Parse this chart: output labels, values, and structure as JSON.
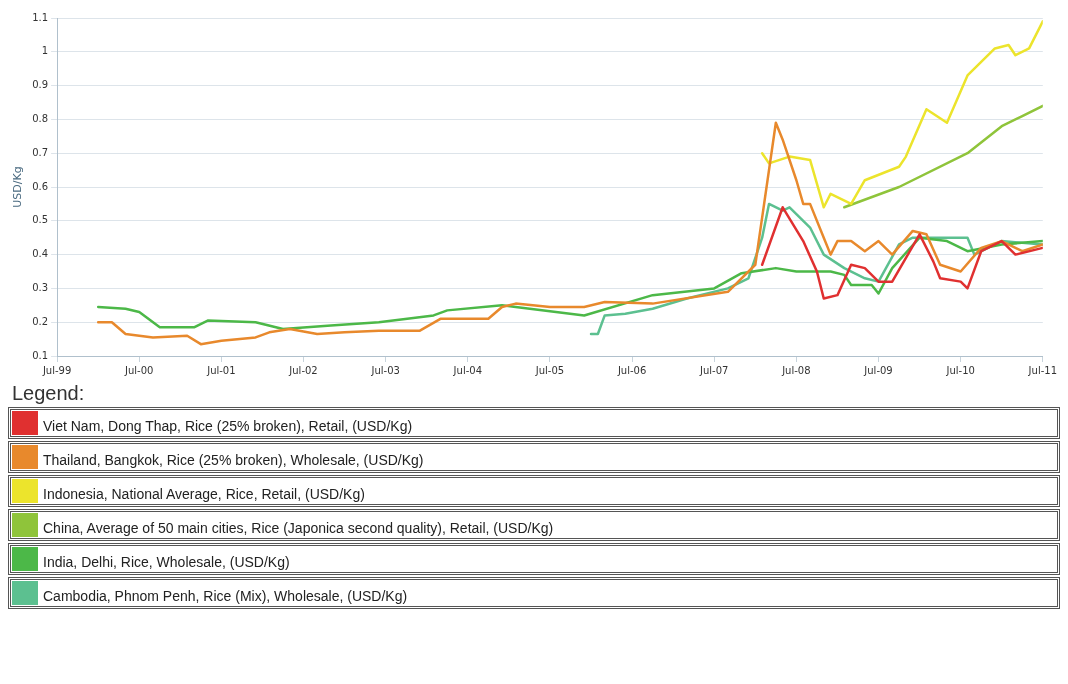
{
  "chart_data": {
    "type": "line",
    "ylabel": "USD/Kg",
    "legend_title": "Legend:",
    "legend": "bottom",
    "grid": "y",
    "marker": "none",
    "line_style": "solid",
    "xlim": [
      "1999-07",
      "2011-07"
    ],
    "xticks": [
      {
        "value": "1999-07",
        "label": "Jul-99"
      },
      {
        "value": "2000-07",
        "label": "Jul-00"
      },
      {
        "value": "2001-07",
        "label": "Jul-01"
      },
      {
        "value": "2002-07",
        "label": "Jul-02"
      },
      {
        "value": "2003-07",
        "label": "Jul-03"
      },
      {
        "value": "2004-07",
        "label": "Jul-04"
      },
      {
        "value": "2005-07",
        "label": "Jul-05"
      },
      {
        "value": "2006-07",
        "label": "Jul-06"
      },
      {
        "value": "2007-07",
        "label": "Jul-07"
      },
      {
        "value": "2008-07",
        "label": "Jul-08"
      },
      {
        "value": "2009-07",
        "label": "Jul-09"
      },
      {
        "value": "2010-07",
        "label": "Jul-10"
      },
      {
        "value": "2011-07",
        "label": "Jul-11"
      }
    ],
    "ylim": [
      0.1,
      1.1
    ],
    "yticks": [
      0.1,
      0.2,
      0.3,
      0.4,
      0.5,
      0.6,
      0.7,
      0.8,
      0.9,
      1,
      1.1
    ],
    "series": [
      {
        "name": "Viet Nam, Dong Thap, Rice (25% broken), Retail, (USD/Kg)",
        "color": "#e03030",
        "x": [
          "2008-02",
          "2008-05",
          "2008-08",
          "2008-10",
          "2008-11",
          "2009-01",
          "2009-03",
          "2009-05",
          "2009-07",
          "2009-09",
          "2010-01",
          "2010-03",
          "2010-04",
          "2010-07",
          "2010-08",
          "2010-10",
          "2011-01",
          "2011-03",
          "2011-07"
        ],
        "values": [
          0.37,
          0.54,
          0.44,
          0.35,
          0.27,
          0.28,
          0.37,
          0.36,
          0.32,
          0.32,
          0.46,
          0.38,
          0.33,
          0.32,
          0.3,
          0.41,
          0.44,
          0.4,
          0.42
        ]
      },
      {
        "name": "Thailand, Bangkok, Rice (25% broken), Wholesale, (USD/Kg)",
        "color": "#e8892c",
        "x": [
          "2000-01",
          "2000-03",
          "2000-05",
          "2000-09",
          "2001-02",
          "2001-04",
          "2001-07",
          "2001-12",
          "2002-02",
          "2002-05",
          "2002-09",
          "2003-01",
          "2003-06",
          "2003-12",
          "2004-03",
          "2004-10",
          "2004-12",
          "2005-02",
          "2005-07",
          "2005-12",
          "2006-03",
          "2006-10",
          "2007-09",
          "2008-01",
          "2008-04",
          "2008-05",
          "2008-07",
          "2008-08",
          "2008-09",
          "2008-11",
          "2008-12",
          "2009-01",
          "2009-03",
          "2009-05",
          "2009-07",
          "2009-09",
          "2009-12",
          "2010-02",
          "2010-04",
          "2010-07",
          "2010-10",
          "2011-01",
          "2011-04",
          "2011-07"
        ],
        "values": [
          0.2,
          0.2,
          0.165,
          0.155,
          0.16,
          0.135,
          0.145,
          0.155,
          0.17,
          0.18,
          0.165,
          0.17,
          0.175,
          0.175,
          0.21,
          0.21,
          0.245,
          0.255,
          0.245,
          0.245,
          0.26,
          0.255,
          0.29,
          0.37,
          0.79,
          0.74,
          0.62,
          0.55,
          0.55,
          0.45,
          0.4,
          0.44,
          0.44,
          0.41,
          0.44,
          0.4,
          0.47,
          0.46,
          0.37,
          0.35,
          0.42,
          0.44,
          0.41,
          0.43
        ]
      },
      {
        "name": "Indonesia, National Average, Rice, Retail, (USD/Kg)",
        "color": "#ece42c",
        "x": [
          "2008-02",
          "2008-03",
          "2008-06",
          "2008-09",
          "2008-11",
          "2008-12",
          "2009-03",
          "2009-05",
          "2009-10",
          "2009-11",
          "2010-02",
          "2010-05",
          "2010-08",
          "2010-12",
          "2011-02",
          "2011-03",
          "2011-05",
          "2011-07"
        ],
        "values": [
          0.7,
          0.67,
          0.69,
          0.68,
          0.54,
          0.58,
          0.55,
          0.62,
          0.66,
          0.69,
          0.83,
          0.79,
          0.93,
          1.01,
          1.02,
          0.99,
          1.01,
          1.09
        ]
      },
      {
        "name": "China, Average of 50 main cities, Rice (Japonica second quality), Retail, (USD/Kg)",
        "color": "#8fc43a",
        "x": [
          "2009-02",
          "2009-10",
          "2010-08",
          "2011-01",
          "2011-04",
          "2011-07"
        ],
        "values": [
          0.54,
          0.6,
          0.7,
          0.78,
          0.81,
          0.84
        ]
      },
      {
        "name": "India, Delhi, Rice, Wholesale, (USD/Kg)",
        "color": "#4cb848",
        "x": [
          "2000-01",
          "2000-05",
          "2000-07",
          "2000-10",
          "2001-03",
          "2001-05",
          "2001-12",
          "2002-04",
          "2002-11",
          "2003-06",
          "2004-02",
          "2004-04",
          "2004-12",
          "2005-02",
          "2005-12",
          "2006-10",
          "2007-07",
          "2007-11",
          "2008-04",
          "2008-07",
          "2008-12",
          "2009-02",
          "2009-03",
          "2009-06",
          "2009-07",
          "2009-09",
          "2010-01",
          "2010-05",
          "2010-08",
          "2011-01",
          "2011-07"
        ],
        "values": [
          0.245,
          0.24,
          0.23,
          0.185,
          0.185,
          0.205,
          0.2,
          0.18,
          0.19,
          0.2,
          0.22,
          0.235,
          0.25,
          0.245,
          0.22,
          0.28,
          0.3,
          0.345,
          0.36,
          0.35,
          0.35,
          0.34,
          0.31,
          0.31,
          0.285,
          0.36,
          0.45,
          0.44,
          0.41,
          0.43,
          0.44
        ]
      },
      {
        "name": "Cambodia, Phnom Penh, Rice (Mix), Wholesale, (USD/Kg)",
        "color": "#5cc090",
        "x": [
          "2006-01",
          "2006-02",
          "2006-03",
          "2006-06",
          "2006-10",
          "2007-03",
          "2007-09",
          "2007-12",
          "2008-02",
          "2008-03",
          "2008-05",
          "2008-06",
          "2008-09",
          "2008-11",
          "2009-02",
          "2009-05",
          "2009-07",
          "2009-10",
          "2009-12",
          "2010-08",
          "2010-09",
          "2011-01",
          "2011-07"
        ],
        "values": [
          0.165,
          0.165,
          0.22,
          0.225,
          0.24,
          0.27,
          0.3,
          0.33,
          0.45,
          0.55,
          0.53,
          0.54,
          0.48,
          0.4,
          0.36,
          0.33,
          0.32,
          0.43,
          0.45,
          0.45,
          0.4,
          0.44,
          0.43
        ]
      }
    ]
  }
}
